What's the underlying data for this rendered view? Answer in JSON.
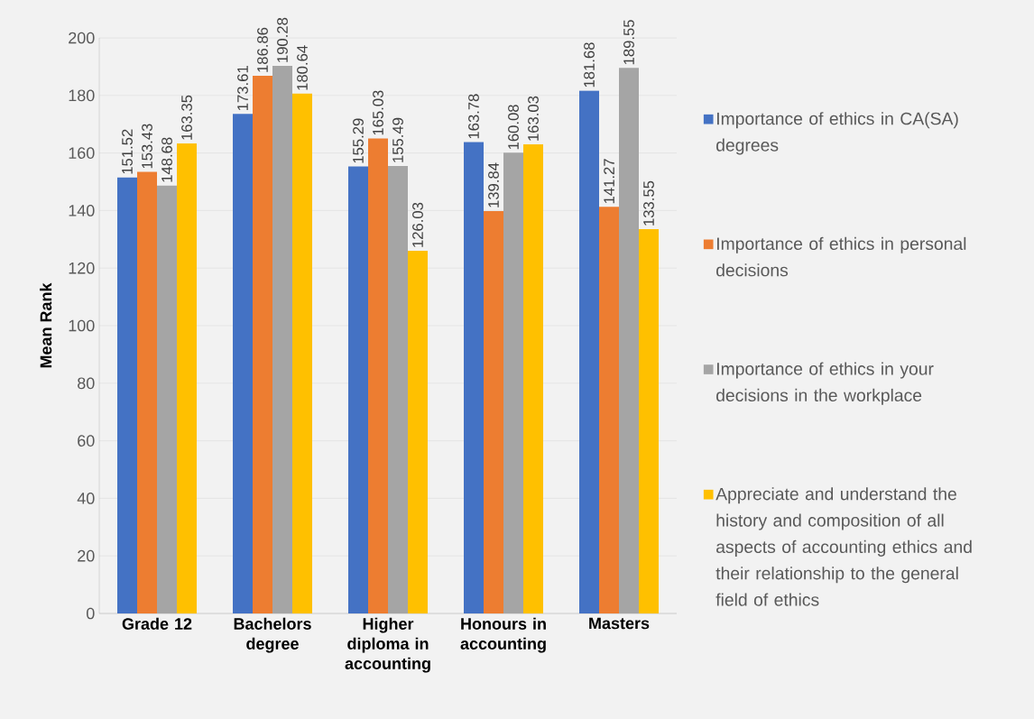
{
  "chart_data": {
    "type": "bar",
    "ylabel": "Mean Rank",
    "categories": [
      "Grade 12",
      "Bachelors degree",
      "Higher diploma in accounting",
      "Honours in accounting",
      "Masters"
    ],
    "series": [
      {
        "name": "Importance of ethics in CA(SA) degrees",
        "color": "#4472c4",
        "values": [
          151.52,
          173.61,
          155.29,
          163.78,
          181.68
        ]
      },
      {
        "name": "Importance of ethics in personal decisions",
        "color": "#ed7d31",
        "values": [
          153.43,
          186.86,
          165.03,
          139.84,
          141.27
        ]
      },
      {
        "name": "Importance of ethics in your decisions in the workplace",
        "color": "#a5a5a5",
        "values": [
          148.68,
          190.28,
          155.49,
          160.08,
          189.55
        ]
      },
      {
        "name": "Appreciate and understand the history and composition of all aspects of accounting ethics and their relationship to the general field of ethics",
        "color": "#ffc000",
        "values": [
          163.35,
          180.64,
          126.03,
          163.03,
          133.55
        ]
      }
    ],
    "ylim": [
      0,
      200
    ],
    "yticks": [
      0,
      20,
      40,
      60,
      80,
      100,
      120,
      140,
      160,
      180,
      200
    ],
    "grid": "y",
    "legend": "right",
    "data_labels": true
  }
}
